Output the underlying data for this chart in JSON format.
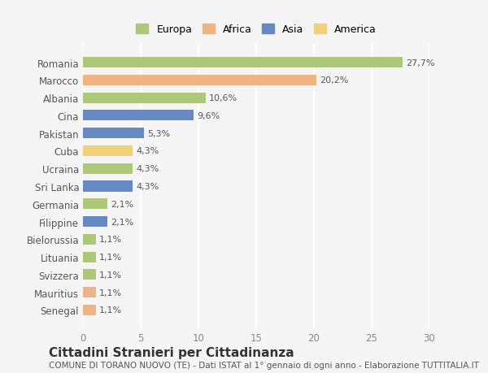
{
  "countries": [
    "Romania",
    "Marocco",
    "Albania",
    "Cina",
    "Pakistan",
    "Cuba",
    "Ucraina",
    "Sri Lanka",
    "Germania",
    "Filippine",
    "Bielorussia",
    "Lituania",
    "Svizzera",
    "Mauritius",
    "Senegal"
  ],
  "values": [
    27.7,
    20.2,
    10.6,
    9.6,
    5.3,
    4.3,
    4.3,
    4.3,
    2.1,
    2.1,
    1.1,
    1.1,
    1.1,
    1.1,
    1.1
  ],
  "labels": [
    "27,7%",
    "20,2%",
    "10,6%",
    "9,6%",
    "5,3%",
    "4,3%",
    "4,3%",
    "4,3%",
    "2,1%",
    "2,1%",
    "1,1%",
    "1,1%",
    "1,1%",
    "1,1%",
    "1,1%"
  ],
  "continents": [
    "Europa",
    "Africa",
    "Europa",
    "Asia",
    "Asia",
    "America",
    "Europa",
    "Asia",
    "Europa",
    "Asia",
    "Europa",
    "Europa",
    "Europa",
    "Africa",
    "Africa"
  ],
  "colors": {
    "Europa": "#adc878",
    "Africa": "#f0b482",
    "Asia": "#6688c3",
    "America": "#f0d078"
  },
  "bar_colors": [
    "#adc878",
    "#f0b482",
    "#adc878",
    "#6688c3",
    "#6688c3",
    "#f0d078",
    "#adc878",
    "#6688c3",
    "#adc878",
    "#6688c3",
    "#adc878",
    "#adc878",
    "#adc878",
    "#f0b482",
    "#f0b482"
  ],
  "legend_order": [
    "Europa",
    "Africa",
    "Asia",
    "America"
  ],
  "xlim": [
    0,
    30
  ],
  "xticks": [
    0,
    5,
    10,
    15,
    20,
    25,
    30
  ],
  "title": "Cittadini Stranieri per Cittadinanza",
  "subtitle": "COMUNE DI TORANO NUOVO (TE) - Dati ISTAT al 1° gennaio di ogni anno - Elaborazione TUTTITALIA.IT",
  "bg_color": "#f5f5f5",
  "grid_color": "#ffffff",
  "title_fontsize": 11,
  "subtitle_fontsize": 7.5,
  "label_fontsize": 8,
  "tick_fontsize": 8.5,
  "legend_fontsize": 9
}
